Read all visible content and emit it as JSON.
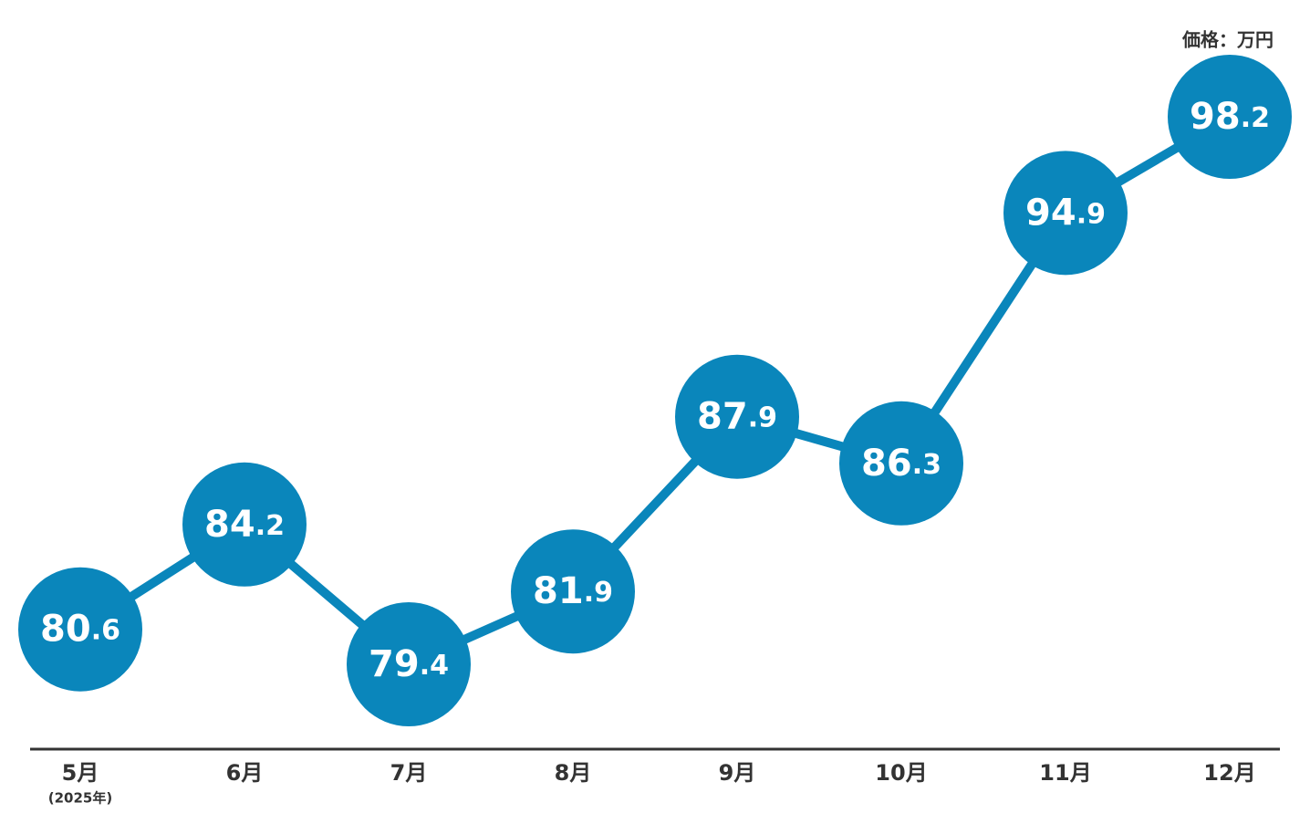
{
  "chart_data": {
    "type": "line",
    "y_label": "価格：万円",
    "categories": [
      "5月",
      "6月",
      "7月",
      "8月",
      "9月",
      "10月",
      "11月",
      "12月"
    ],
    "category_note": "(2025年)",
    "series": [
      {
        "name": "価格",
        "color": "#0a86bb",
        "values": [
          80.6,
          84.2,
          79.4,
          81.9,
          87.9,
          86.3,
          94.9,
          98.2
        ]
      }
    ]
  }
}
